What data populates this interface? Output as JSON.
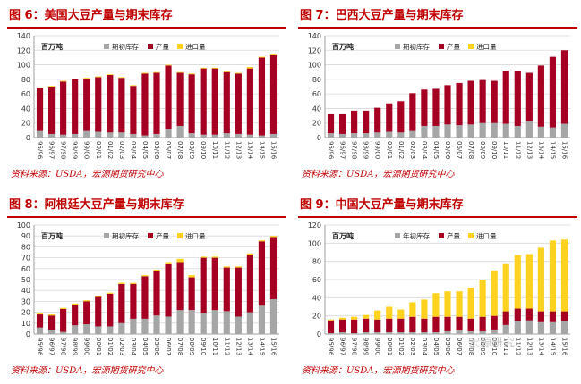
{
  "colors": {
    "inventory": "#a6a6a6",
    "production": "#a50021",
    "imports": "#ffd21f",
    "accent": "#c00000"
  },
  "legend_labels": {
    "initial_stock": "期初库存",
    "annual_stock": "年初库存",
    "production": "产量",
    "imports": "进口量"
  },
  "unit": "百万吨",
  "source_note": "资料来源：USDA，宏源期货研究中心",
  "watermark": "宏源研究",
  "chart_data": [
    {
      "id": "fig6",
      "type": "bar",
      "stacked": true,
      "title": "图 6：美国大豆产量与期末库存",
      "ylim": [
        0,
        140
      ],
      "ytick_step": 20,
      "categories": [
        "95/96",
        "96/97",
        "97/98",
        "98/99",
        "99/00",
        "00/01",
        "01/02",
        "02/03",
        "03/04",
        "04/05",
        "05/06",
        "06/07",
        "07/08",
        "08/09",
        "09/10",
        "10/11",
        "11/12",
        "12/13",
        "13/14",
        "14/15",
        "15/16"
      ],
      "series": [
        {
          "name": "期初库存",
          "color_key": "inventory",
          "values": [
            9,
            5,
            4,
            5,
            9,
            8,
            7,
            7,
            5,
            3,
            5,
            12,
            16,
            6,
            4,
            4,
            6,
            5,
            4,
            3,
            5
          ]
        },
        {
          "name": "产量",
          "color_key": "production",
          "values": [
            59,
            65,
            73,
            75,
            72,
            75,
            79,
            75,
            66,
            85,
            84,
            87,
            73,
            81,
            91,
            91,
            84,
            83,
            91,
            107,
            108
          ]
        },
        {
          "name": "进口量",
          "color_key": "imports",
          "values": [
            1,
            1,
            1,
            1,
            1,
            1,
            1,
            1,
            1,
            1,
            1,
            1,
            1,
            1,
            1,
            1,
            1,
            1,
            2,
            1,
            1
          ]
        }
      ]
    },
    {
      "id": "fig7",
      "type": "bar",
      "stacked": true,
      "title": "图 7：巴西大豆产量与期末库存",
      "ylim": [
        0,
        140
      ],
      "ytick_step": 20,
      "categories": [
        "95/96",
        "96/97",
        "97/98",
        "98/99",
        "99/00",
        "00/01",
        "01/02",
        "02/03",
        "03/04",
        "04/05",
        "05/06",
        "06/07",
        "07/08",
        "08/09",
        "09/10",
        "10/11",
        "11/12",
        "12/13",
        "13/14",
        "14/15",
        "15/16"
      ],
      "series": [
        {
          "name": "期初库存",
          "color_key": "inventory",
          "values": [
            6,
            5,
            6,
            6,
            7,
            8,
            7,
            9,
            16,
            16,
            18,
            17,
            18,
            20,
            20,
            19,
            16,
            22,
            15,
            14,
            19
          ]
        },
        {
          "name": "产量",
          "color_key": "production",
          "values": [
            26,
            27,
            31,
            31,
            34,
            39,
            43,
            52,
            50,
            51,
            54,
            58,
            60,
            59,
            58,
            73,
            75,
            67,
            84,
            97,
            101
          ]
        },
        {
          "name": "进口量",
          "color_key": "imports",
          "values": [
            0,
            0,
            0,
            0,
            0,
            0,
            0,
            0,
            0,
            0,
            0,
            0,
            0,
            0,
            0,
            0,
            0,
            0,
            0,
            0,
            0
          ]
        }
      ]
    },
    {
      "id": "fig8",
      "type": "bar",
      "stacked": true,
      "title": "图 8：阿根廷大豆产量与期末库存",
      "ylim": [
        0,
        100
      ],
      "ytick_step": 10,
      "categories": [
        "95/96",
        "96/97",
        "97/98",
        "98/99",
        "99/00",
        "00/01",
        "01/02",
        "02/03",
        "03/04",
        "04/05",
        "05/06",
        "06/07",
        "07/08",
        "08/09",
        "09/10",
        "10/11",
        "11/12",
        "12/13",
        "13/14",
        "14/15",
        "15/16"
      ],
      "series": [
        {
          "name": "期初库存",
          "color_key": "inventory",
          "values": [
            6,
            4,
            2,
            8,
            9,
            7,
            7,
            10,
            14,
            14,
            17,
            16,
            22,
            22,
            19,
            22,
            21,
            16,
            20,
            26,
            32
          ]
        },
        {
          "name": "产量",
          "color_key": "production",
          "values": [
            12,
            13,
            21,
            19,
            21,
            27,
            30,
            36,
            32,
            39,
            41,
            48,
            44,
            30,
            51,
            48,
            40,
            45,
            53,
            59,
            57
          ]
        },
        {
          "name": "进口量",
          "color_key": "imports",
          "values": [
            1,
            1,
            1,
            1,
            1,
            1,
            1,
            1,
            1,
            1,
            1,
            2,
            3,
            2,
            1,
            1,
            1,
            1,
            1,
            1,
            1
          ]
        }
      ]
    },
    {
      "id": "fig9",
      "type": "bar",
      "stacked": true,
      "title": "图 9：中国大豆产量与期末库存",
      "ylim": [
        0,
        120
      ],
      "ytick_step": 20,
      "categories": [
        "95/96",
        "96/97",
        "97/98",
        "98/99",
        "99/00",
        "00/01",
        "01/02",
        "02/03",
        "03/04",
        "04/05",
        "05/06",
        "06/07",
        "07/08",
        "08/09",
        "09/10",
        "10/11",
        "11/12",
        "12/13",
        "13/14",
        "14/15",
        "15/16"
      ],
      "series": [
        {
          "name": "年初库存",
          "color_key": "inventory",
          "values": [
            1,
            2,
            1,
            2,
            2,
            2,
            2,
            2,
            2,
            2,
            3,
            4,
            3,
            3,
            5,
            10,
            14,
            15,
            13,
            13,
            14
          ]
        },
        {
          "name": "产量",
          "color_key": "production",
          "values": [
            14,
            14,
            15,
            15,
            14,
            15,
            15,
            17,
            15,
            17,
            16,
            15,
            14,
            16,
            15,
            15,
            14,
            13,
            12,
            12,
            11
          ]
        },
        {
          "name": "进口量",
          "color_key": "imports",
          "values": [
            1,
            2,
            3,
            4,
            10,
            13,
            10,
            16,
            21,
            26,
            28,
            28,
            34,
            41,
            50,
            52,
            59,
            60,
            70,
            78,
            79
          ]
        }
      ]
    }
  ]
}
